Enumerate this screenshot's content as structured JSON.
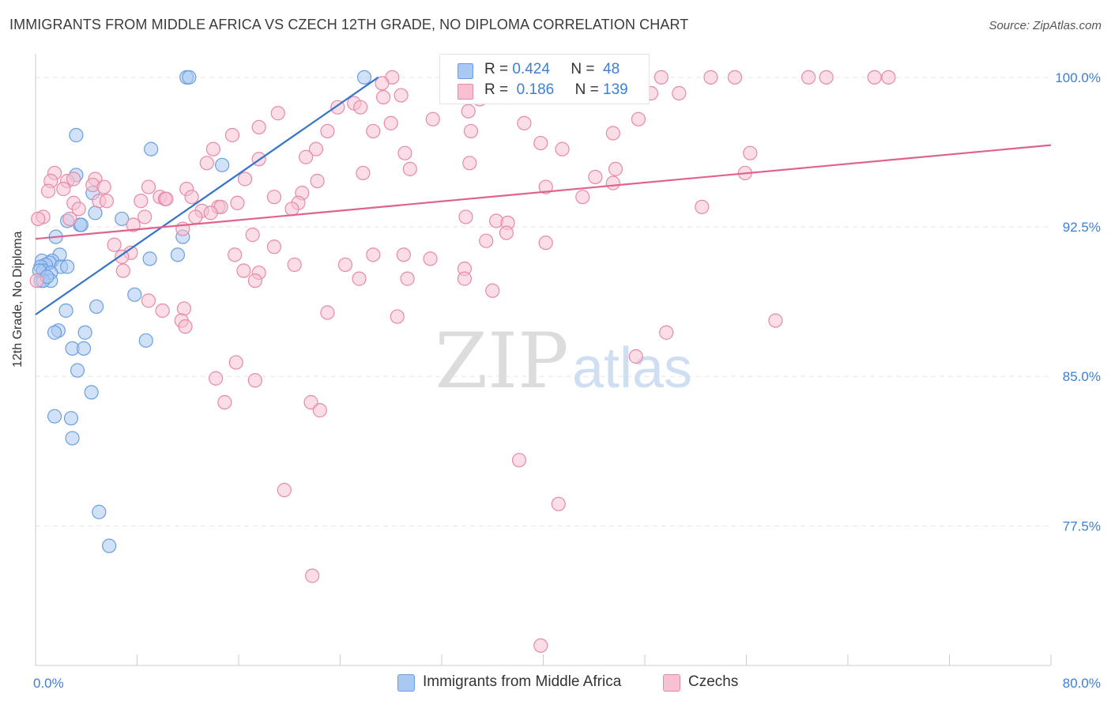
{
  "header": {
    "title": "IMMIGRANTS FROM MIDDLE AFRICA VS CZECH 12TH GRADE, NO DIPLOMA CORRELATION CHART",
    "source": "Source: ZipAtlas.com"
  },
  "watermark": {
    "zip": "ZIP",
    "atlas": "atlas"
  },
  "legend_top": [
    {
      "r_label": "R =",
      "r_value": "0.424",
      "n_label": "N =",
      "n_value": "48",
      "color": "#a9c9f3",
      "stroke": "#6a9fe0"
    },
    {
      "r_label": "R =",
      "r_value": "0.186",
      "n_label": "N =",
      "n_value": "139",
      "color": "#f7c1d2",
      "stroke": "#e58aa8"
    }
  ],
  "legend_bottom": [
    {
      "label": "Immigrants from Middle Africa",
      "color": "#a9c9f3",
      "stroke": "#6a9fe0"
    },
    {
      "label": "Czechs",
      "color": "#f7c1d2",
      "stroke": "#e58aa8"
    }
  ],
  "chart_data": {
    "type": "scatter",
    "title": "IMMIGRANTS FROM MIDDLE AFRICA VS CZECH 12TH GRADE, NO DIPLOMA CORRELATION CHART",
    "xlabel": "",
    "ylabel": "12th Grade, No Diploma",
    "xlim": [
      0,
      80
    ],
    "ylim": [
      70.5,
      101.5
    ],
    "x_tick_labels": [
      {
        "value": 0,
        "label": "0.0%"
      },
      {
        "value": 80,
        "label": "80.0%"
      }
    ],
    "x_minor_ticks": [
      0,
      8,
      16,
      24,
      32,
      40,
      48,
      56,
      64,
      72,
      80
    ],
    "y_ticks": [
      {
        "value": 100,
        "label": "100.0%"
      },
      {
        "value": 92.5,
        "label": "92.5%"
      },
      {
        "value": 85,
        "label": "85.0%"
      },
      {
        "value": 77.5,
        "label": "77.5%"
      }
    ],
    "grid": true,
    "legend": "top-center",
    "series": [
      {
        "name": "Immigrants from Middle Africa",
        "color": "#a9c9f3",
        "stroke": "#6a9fe0",
        "trend": {
          "x1": 0.0,
          "y1": 88.1,
          "x2": 27.0,
          "y2": 100.0,
          "color": "#3674c9"
        },
        "points": [
          [
            11.9,
            100.0
          ],
          [
            12.1,
            100.0
          ],
          [
            25.9,
            100.0
          ],
          [
            3.2,
            97.1
          ],
          [
            9.1,
            96.4
          ],
          [
            14.7,
            95.6
          ],
          [
            3.2,
            95.1
          ],
          [
            4.5,
            94.2
          ],
          [
            4.7,
            93.2
          ],
          [
            6.8,
            92.9
          ],
          [
            2.5,
            92.8
          ],
          [
            3.5,
            92.6
          ],
          [
            3.6,
            92.6
          ],
          [
            1.6,
            92.0
          ],
          [
            11.6,
            92.0
          ],
          [
            1.9,
            91.1
          ],
          [
            11.2,
            91.1
          ],
          [
            9.0,
            90.9
          ],
          [
            0.5,
            90.8
          ],
          [
            1.3,
            90.8
          ],
          [
            1.1,
            90.7
          ],
          [
            0.8,
            90.6
          ],
          [
            2.0,
            90.5
          ],
          [
            2.5,
            90.5
          ],
          [
            0.4,
            90.5
          ],
          [
            0.6,
            90.3
          ],
          [
            1.2,
            90.2
          ],
          [
            0.4,
            89.8
          ],
          [
            1.2,
            89.8
          ],
          [
            0.6,
            89.8
          ],
          [
            7.8,
            89.1
          ],
          [
            4.8,
            88.5
          ],
          [
            2.4,
            88.3
          ],
          [
            1.8,
            87.3
          ],
          [
            1.5,
            87.2
          ],
          [
            3.9,
            87.2
          ],
          [
            8.7,
            86.8
          ],
          [
            2.9,
            86.4
          ],
          [
            3.8,
            86.4
          ],
          [
            3.3,
            85.3
          ],
          [
            4.4,
            84.2
          ],
          [
            1.5,
            83.0
          ],
          [
            2.8,
            82.9
          ],
          [
            2.9,
            81.9
          ],
          [
            5.0,
            78.2
          ],
          [
            5.8,
            76.5
          ],
          [
            0.3,
            90.3
          ],
          [
            0.9,
            90.0
          ]
        ]
      },
      {
        "name": "Czechs",
        "color": "#f7c1d2",
        "stroke": "#e58aa8",
        "trend": {
          "x1": 0.0,
          "y1": 91.9,
          "x2": 80.0,
          "y2": 96.6,
          "color": "#e0628d"
        },
        "points": [
          [
            28.1,
            100.0
          ],
          [
            45.2,
            100.0
          ],
          [
            44.6,
            100.0
          ],
          [
            49.3,
            100.0
          ],
          [
            53.2,
            100.0
          ],
          [
            55.1,
            100.0
          ],
          [
            60.9,
            100.0
          ],
          [
            62.3,
            100.0
          ],
          [
            66.1,
            100.0
          ],
          [
            67.2,
            100.0
          ],
          [
            27.3,
            99.7
          ],
          [
            38.0,
            99.6
          ],
          [
            38.5,
            99.5
          ],
          [
            41.0,
            99.3
          ],
          [
            48.5,
            99.2
          ],
          [
            50.7,
            99.2
          ],
          [
            28.8,
            99.1
          ],
          [
            37.4,
            99.0
          ],
          [
            25.1,
            98.7
          ],
          [
            27.4,
            99.0
          ],
          [
            35.0,
            98.9
          ],
          [
            23.8,
            98.5
          ],
          [
            25.6,
            98.5
          ],
          [
            34.1,
            98.3
          ],
          [
            19.1,
            98.2
          ],
          [
            31.3,
            97.9
          ],
          [
            47.5,
            97.9
          ],
          [
            28.0,
            97.7
          ],
          [
            38.5,
            97.7
          ],
          [
            17.6,
            97.5
          ],
          [
            26.6,
            97.3
          ],
          [
            23.0,
            97.3
          ],
          [
            34.3,
            97.3
          ],
          [
            45.5,
            97.2
          ],
          [
            15.5,
            97.1
          ],
          [
            39.8,
            96.7
          ],
          [
            14.0,
            96.4
          ],
          [
            22.1,
            96.4
          ],
          [
            41.5,
            96.4
          ],
          [
            29.1,
            96.2
          ],
          [
            56.3,
            96.2
          ],
          [
            21.3,
            96.0
          ],
          [
            17.6,
            95.9
          ],
          [
            13.5,
            95.7
          ],
          [
            34.2,
            95.7
          ],
          [
            29.5,
            95.4
          ],
          [
            45.7,
            95.4
          ],
          [
            25.8,
            95.2
          ],
          [
            55.9,
            95.2
          ],
          [
            1.5,
            95.2
          ],
          [
            2.5,
            94.8
          ],
          [
            1.2,
            94.8
          ],
          [
            3.0,
            94.9
          ],
          [
            4.7,
            94.9
          ],
          [
            16.5,
            94.9
          ],
          [
            22.2,
            94.8
          ],
          [
            44.1,
            95.0
          ],
          [
            45.5,
            94.7
          ],
          [
            4.5,
            94.6
          ],
          [
            5.4,
            94.5
          ],
          [
            8.9,
            94.5
          ],
          [
            11.9,
            94.4
          ],
          [
            1.0,
            94.3
          ],
          [
            2.2,
            94.4
          ],
          [
            21.0,
            94.2
          ],
          [
            40.2,
            94.5
          ],
          [
            12.3,
            94.0
          ],
          [
            18.8,
            94.0
          ],
          [
            9.8,
            94.0
          ],
          [
            10.2,
            93.9
          ],
          [
            10.3,
            93.9
          ],
          [
            43.1,
            94.0
          ],
          [
            8.3,
            93.8
          ],
          [
            5.0,
            93.8
          ],
          [
            5.6,
            93.8
          ],
          [
            3.0,
            93.7
          ],
          [
            15.9,
            93.7
          ],
          [
            20.7,
            93.7
          ],
          [
            14.4,
            93.5
          ],
          [
            14.6,
            93.5
          ],
          [
            13.1,
            93.3
          ],
          [
            20.2,
            93.4
          ],
          [
            13.8,
            93.2
          ],
          [
            52.5,
            93.5
          ],
          [
            3.4,
            93.4
          ],
          [
            0.6,
            93.0
          ],
          [
            8.6,
            93.0
          ],
          [
            12.6,
            93.0
          ],
          [
            33.9,
            93.0
          ],
          [
            36.3,
            92.8
          ],
          [
            37.2,
            92.7
          ],
          [
            7.7,
            92.6
          ],
          [
            11.6,
            92.4
          ],
          [
            2.7,
            92.9
          ],
          [
            37.1,
            92.2
          ],
          [
            17.1,
            92.1
          ],
          [
            35.5,
            91.8
          ],
          [
            40.2,
            91.7
          ],
          [
            6.2,
            91.6
          ],
          [
            18.8,
            91.5
          ],
          [
            7.5,
            91.2
          ],
          [
            15.7,
            91.1
          ],
          [
            26.6,
            91.1
          ],
          [
            6.8,
            91.0
          ],
          [
            29.0,
            91.1
          ],
          [
            31.1,
            90.9
          ],
          [
            20.4,
            90.6
          ],
          [
            24.4,
            90.6
          ],
          [
            16.4,
            90.3
          ],
          [
            6.9,
            90.3
          ],
          [
            33.8,
            90.4
          ],
          [
            17.6,
            90.2
          ],
          [
            29.3,
            89.9
          ],
          [
            25.5,
            89.9
          ],
          [
            33.8,
            89.9
          ],
          [
            17.3,
            89.8
          ],
          [
            36.0,
            89.3
          ],
          [
            8.9,
            88.8
          ],
          [
            11.7,
            88.4
          ],
          [
            10.0,
            88.3
          ],
          [
            23.0,
            88.2
          ],
          [
            28.5,
            88.0
          ],
          [
            58.3,
            87.8
          ],
          [
            11.5,
            87.8
          ],
          [
            11.8,
            87.5
          ],
          [
            49.7,
            87.2
          ],
          [
            47.3,
            86.0
          ],
          [
            15.8,
            85.7
          ],
          [
            14.2,
            84.9
          ],
          [
            17.3,
            84.8
          ],
          [
            14.9,
            83.7
          ],
          [
            21.7,
            83.7
          ],
          [
            22.4,
            83.3
          ],
          [
            38.1,
            80.8
          ],
          [
            19.6,
            79.3
          ],
          [
            41.2,
            78.6
          ],
          [
            21.8,
            75.0
          ],
          [
            39.8,
            71.5
          ],
          [
            0.2,
            92.9
          ],
          [
            0.1,
            89.8
          ]
        ]
      }
    ]
  }
}
